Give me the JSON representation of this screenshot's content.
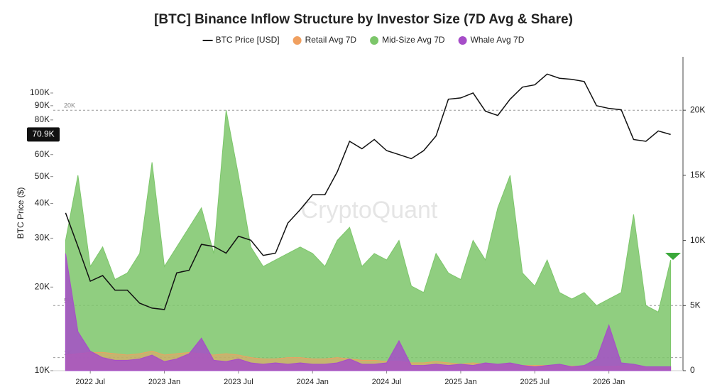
{
  "chart_data": {
    "type": "line-area",
    "title": "[BTC] Binance Inflow Structure by Investor Size (7D Avg & Share)",
    "ylabel": "BTC Price ($)",
    "watermark": "CryptoQuant",
    "x": [
      "2022-05",
      "2022-06",
      "2022-07",
      "2022-08",
      "2022-09",
      "2022-10",
      "2022-11",
      "2022-12",
      "2023-01",
      "2023-02",
      "2023-03",
      "2023-04",
      "2023-05",
      "2023-06",
      "2023-07",
      "2023-08",
      "2023-09",
      "2023-10",
      "2023-11",
      "2023-12",
      "2024-01",
      "2024-02",
      "2024-03",
      "2024-04",
      "2024-05",
      "2024-06",
      "2024-07",
      "2024-08",
      "2024-09",
      "2024-10",
      "2024-11",
      "2024-12",
      "2025-01",
      "2025-02",
      "2025-03",
      "2025-04",
      "2025-05",
      "2025-06",
      "2025-07",
      "2025-08",
      "2025-09",
      "2025-10",
      "2025-11",
      "2025-12",
      "2026-01",
      "2026-02",
      "2026-03",
      "2026-04",
      "2026-05",
      "2026-06"
    ],
    "xlim": [
      "2022-04",
      "2026-07"
    ],
    "xticks": [
      {
        "value": "2022-07",
        "label": "2022 Jul"
      },
      {
        "value": "2023-01",
        "label": "2023 Jan"
      },
      {
        "value": "2023-07",
        "label": "2023 Jul"
      },
      {
        "value": "2024-01",
        "label": "2024 Jan"
      },
      {
        "value": "2024-07",
        "label": "2024 Jul"
      },
      {
        "value": "2025-01",
        "label": "2025 Jan"
      },
      {
        "value": "2025-07",
        "label": "2025 Jul"
      },
      {
        "value": "2026-01",
        "label": "2026 Jan"
      }
    ],
    "ylog": true,
    "ylim": [
      10000,
      135000
    ],
    "yticks": [
      {
        "value": 10000,
        "label": "10K"
      },
      {
        "value": 20000,
        "label": "20K"
      },
      {
        "value": 30000,
        "label": "30K"
      },
      {
        "value": 40000,
        "label": "40K"
      },
      {
        "value": 50000,
        "label": "50K"
      },
      {
        "value": 60000,
        "label": "60K"
      },
      {
        "value": 80000,
        "label": "80K"
      },
      {
        "value": 90000,
        "label": "90K"
      },
      {
        "value": 100000,
        "label": "100K"
      }
    ],
    "y2lim": [
      0,
      24100
    ],
    "y2ticks": [
      0,
      {
        "value": 5000,
        "label": "5K"
      },
      {
        "value": 10000,
        "label": "10K"
      },
      {
        "value": 15000,
        "label": "15K"
      },
      {
        "value": 20000,
        "label": "20K"
      }
    ],
    "reference_lines": [
      {
        "value": 20000,
        "label": "20K"
      },
      {
        "value": 5000,
        "label": "5K"
      },
      {
        "value": 1000,
        "label": "1K"
      }
    ],
    "price_badge": {
      "value": 70900,
      "label": "70.9K"
    },
    "series": [
      {
        "name": "BTC Price [USD]",
        "color": "#111111",
        "axis": "y",
        "values": [
          37000,
          28000,
          21000,
          22000,
          19500,
          19500,
          17500,
          16800,
          16600,
          22500,
          23000,
          28500,
          28000,
          26500,
          30500,
          29500,
          26000,
          26500,
          34000,
          38000,
          43000,
          43000,
          52000,
          67000,
          63000,
          68000,
          62000,
          60000,
          58000,
          62000,
          70000,
          95000,
          96000,
          100000,
          86000,
          83000,
          95000,
          105000,
          107000,
          117000,
          113000,
          112000,
          110000,
          90000,
          88000,
          87000,
          68000,
          67000,
          73000,
          70900
        ]
      },
      {
        "name": "Retail Avg 7D",
        "color": "#f0a060",
        "axis": "y2",
        "values": [
          1200,
          1300,
          1400,
          1400,
          1300,
          1200,
          1300,
          1500,
          1200,
          1300,
          1400,
          1300,
          1200,
          1300,
          1200,
          1000,
          900,
          900,
          1000,
          1000,
          900,
          900,
          1000,
          900,
          800,
          800,
          700,
          700,
          600,
          600,
          700,
          600,
          500,
          600,
          500,
          500,
          500,
          400,
          400,
          400,
          400,
          350,
          350,
          300,
          300,
          350,
          400,
          300,
          300,
          300
        ]
      },
      {
        "name": "Mid-Size Avg 7D",
        "color": "#7cc66a",
        "axis": "y2",
        "values": [
          10000,
          15000,
          8000,
          9500,
          7000,
          7500,
          9000,
          16000,
          8000,
          9500,
          11000,
          12500,
          9000,
          20000,
          15000,
          9500,
          8000,
          8500,
          9000,
          9500,
          9000,
          8000,
          10000,
          11000,
          8000,
          9000,
          8500,
          10000,
          6500,
          6000,
          9000,
          7500,
          7000,
          10000,
          8500,
          12500,
          15000,
          7500,
          6500,
          8500,
          6000,
          5500,
          6000,
          5000,
          5500,
          6000,
          12000,
          5000,
          4500,
          8500
        ]
      },
      {
        "name": "Whale Avg 7D",
        "color": "#a64dc8",
        "axis": "y2",
        "values": [
          9000,
          3000,
          1500,
          1000,
          800,
          800,
          900,
          1200,
          700,
          900,
          1300,
          2500,
          800,
          700,
          900,
          600,
          500,
          600,
          500,
          600,
          500,
          500,
          600,
          900,
          500,
          500,
          600,
          2300,
          400,
          400,
          500,
          400,
          500,
          400,
          600,
          500,
          600,
          400,
          300,
          400,
          500,
          300,
          400,
          900,
          3500,
          600,
          500,
          300,
          300,
          300
        ]
      }
    ],
    "draw_order": [
      2,
      1,
      3,
      0
    ]
  }
}
